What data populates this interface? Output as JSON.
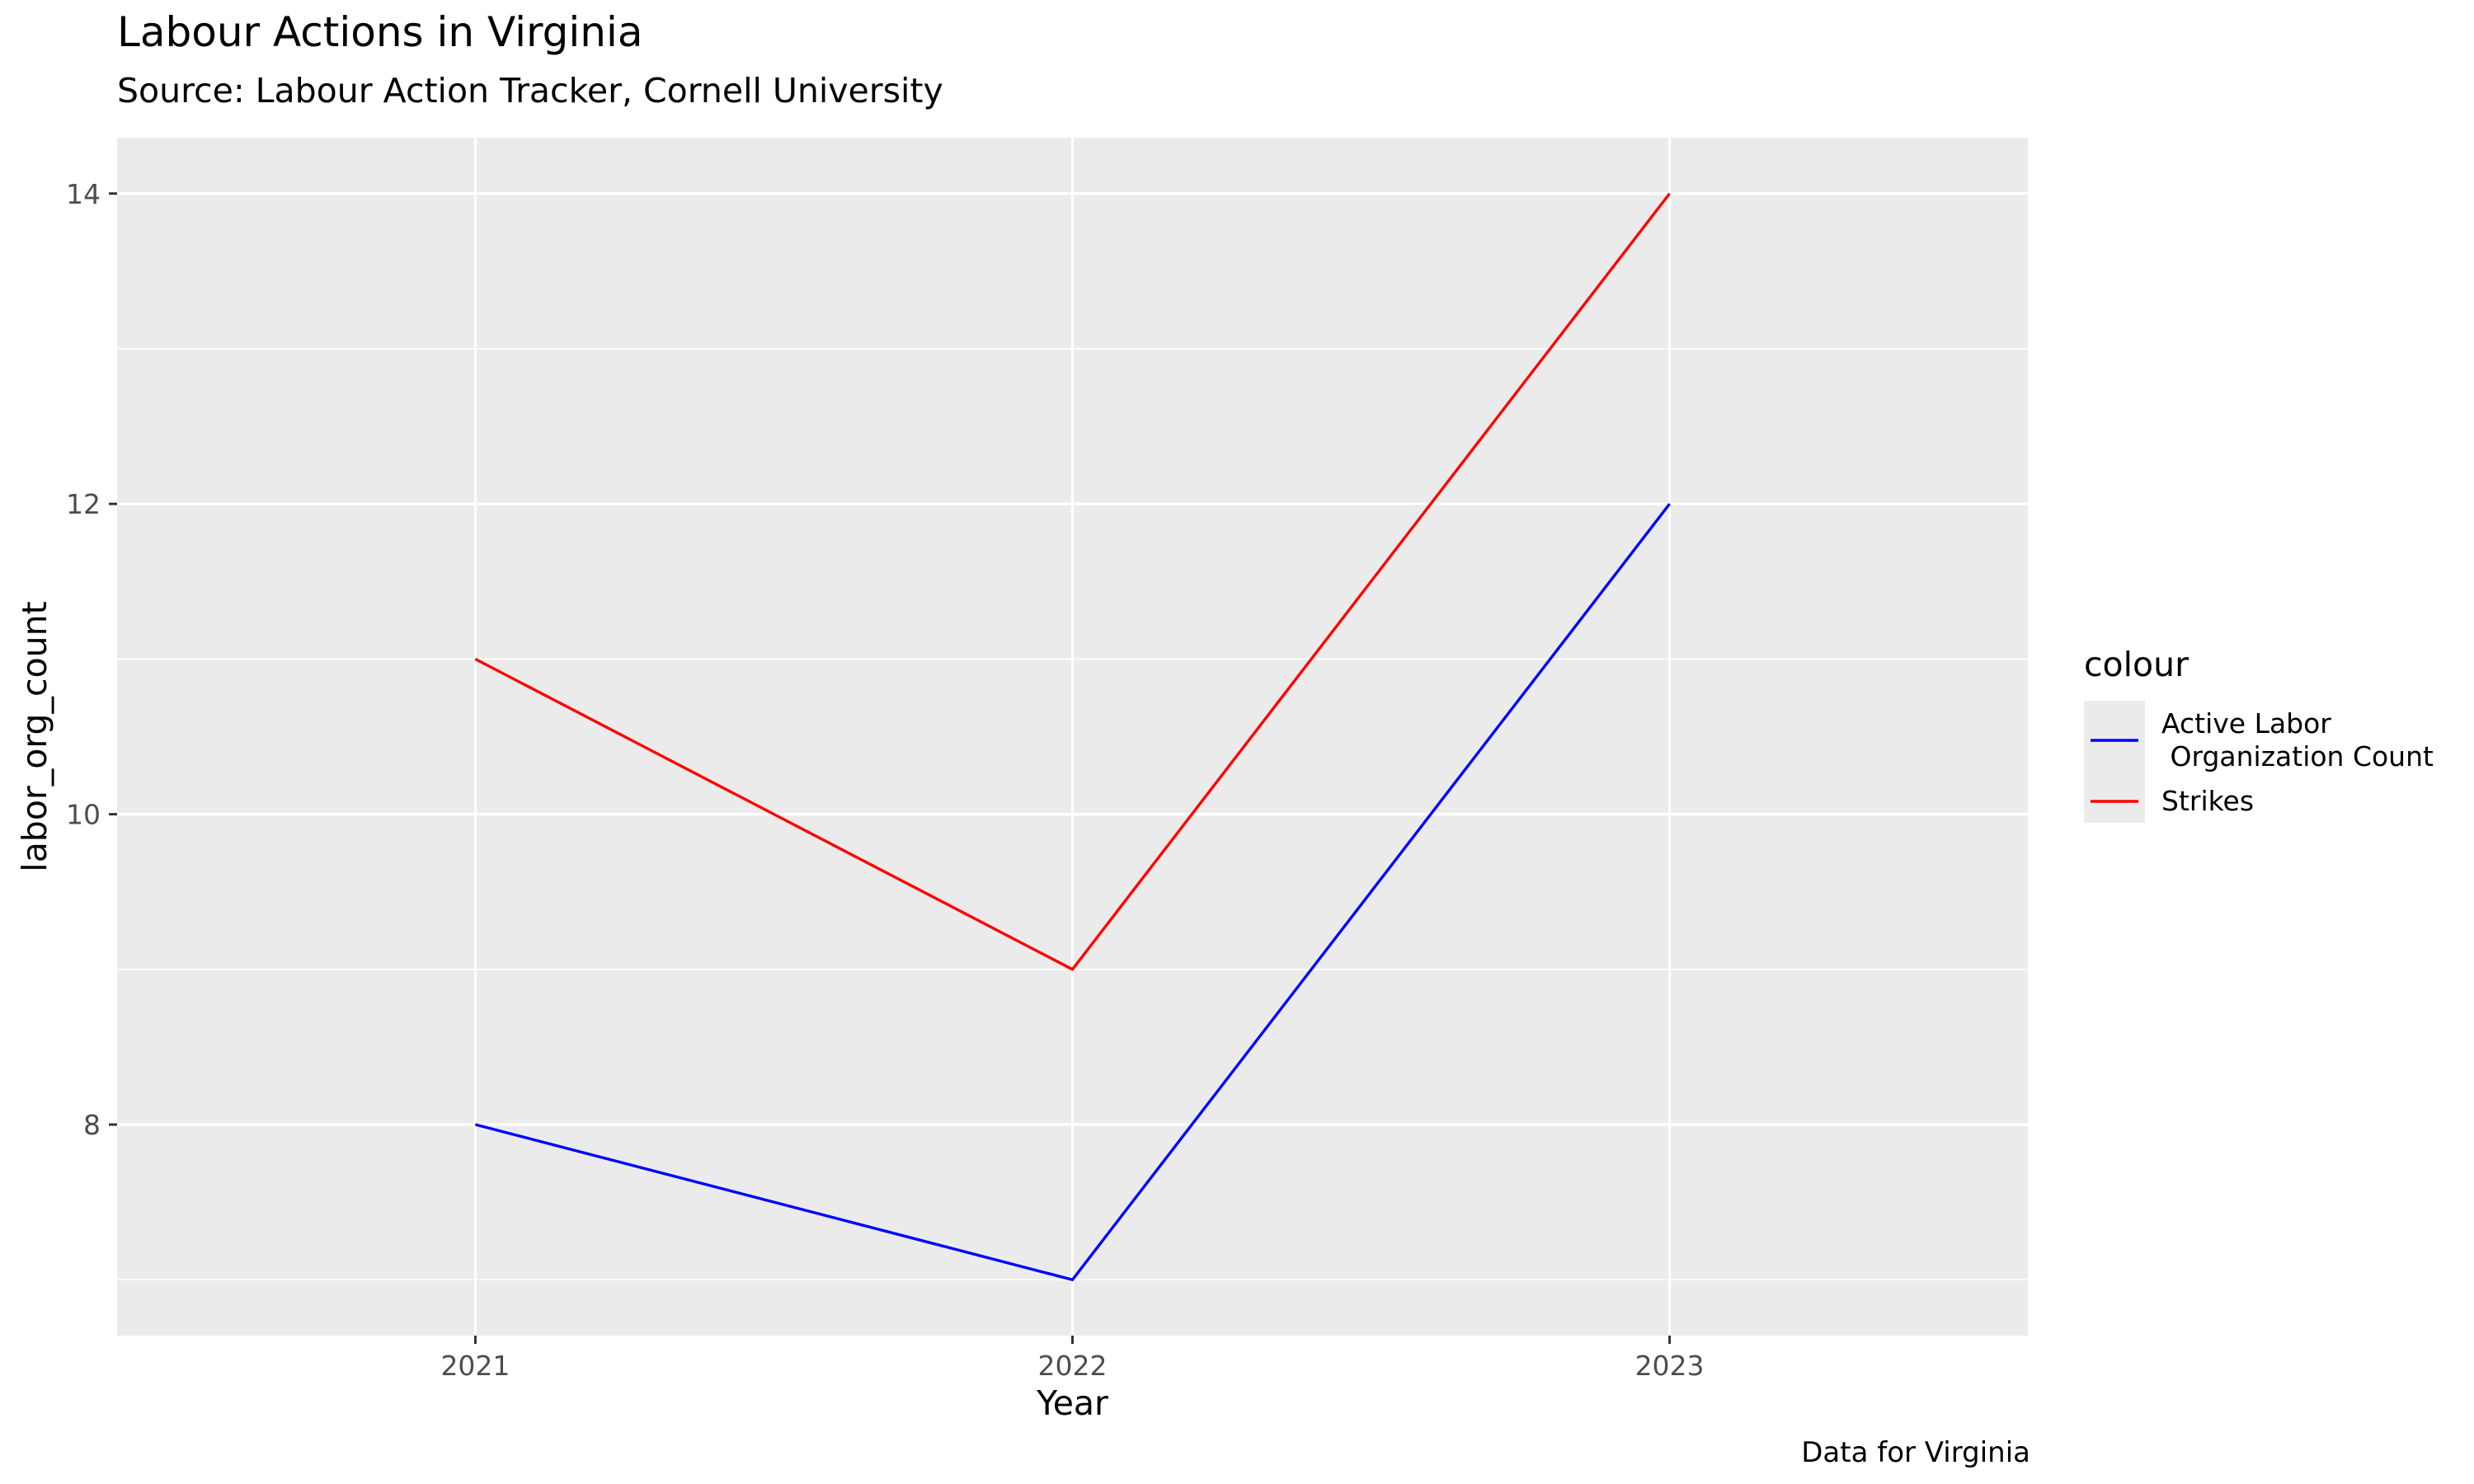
{
  "title": "Labour Actions in Virginia",
  "subtitle": "Source: Labour Action Tracker, Cornell University",
  "caption": "Data for Virginia",
  "chart_data": {
    "type": "line",
    "title": "Labour Actions in Virginia",
    "subtitle": "Source: Labour Action Tracker, Cornell University",
    "caption": "Data for Virginia",
    "xlabel": "Year",
    "ylabel": "labor_org_count",
    "x": [
      2021,
      2022,
      2023
    ],
    "xticks": [
      "2021",
      "2022",
      "2023"
    ],
    "xlim": [
      2020.4,
      2023.6
    ],
    "ylim": [
      6.64,
      14.36
    ],
    "yticks": [
      8,
      10,
      12,
      14
    ],
    "grid": true,
    "legend": {
      "title": "colour",
      "position": "right"
    },
    "series": [
      {
        "name": "Active Labor\n Organization Count",
        "color": "#0000ff",
        "values": [
          8,
          7,
          12
        ]
      },
      {
        "name": "Strikes",
        "color": "#ff0000",
        "values": [
          11,
          9,
          14
        ]
      }
    ],
    "colors": {
      "panel": "#ebebeb",
      "grid": "#ffffff",
      "tick_text": "#4d4d4d"
    }
  }
}
